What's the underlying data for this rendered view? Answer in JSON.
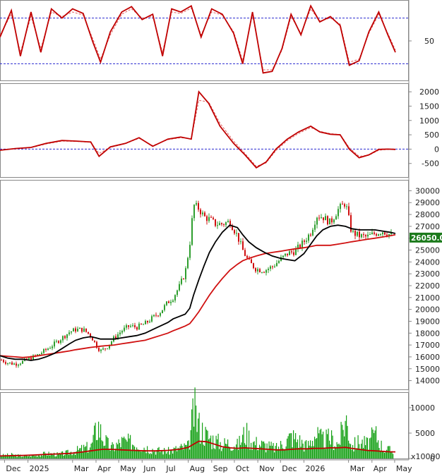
{
  "colors": {
    "indicator_line": "#c00000",
    "signal_line": "#e06060",
    "reference_line": "#2a2ad0",
    "ma_black": "#000000",
    "ma_red": "#d01010",
    "candle_up": "#2e9e2e",
    "candle_down": "#d01010",
    "volume_bar": "#14a014",
    "volume_ma": "#c00000",
    "price_badge": "#1b7a1b"
  },
  "chart_data": [
    {
      "type": "line",
      "panel": "oscillator",
      "y_ticks": [
        50
      ],
      "ylim": [
        0,
        100
      ],
      "reference_lines": [
        80,
        20
      ],
      "x": [
        "2024-11-25",
        "2024-12-10",
        "2024-12-22",
        "2025-01-05",
        "2025-01-18",
        "2025-02-01",
        "2025-02-15",
        "2025-03-01",
        "2025-03-15",
        "2025-03-28",
        "2025-04-07",
        "2025-04-20",
        "2025-05-05",
        "2025-05-18",
        "2025-06-01",
        "2025-06-15",
        "2025-06-28",
        "2025-07-10",
        "2025-07-22",
        "2025-08-05",
        "2025-08-18",
        "2025-09-01",
        "2025-09-15",
        "2025-09-30",
        "2025-10-12",
        "2025-10-25",
        "2025-11-08",
        "2025-11-20",
        "2025-12-03",
        "2025-12-15",
        "2025-12-28",
        "2026-01-10",
        "2026-01-22",
        "2026-02-05",
        "2026-02-18",
        "2026-03-02",
        "2026-03-15",
        "2026-03-28",
        "2026-04-10",
        "2026-04-22",
        "2026-05-02"
      ],
      "series": [
        {
          "values": [
            55,
            90,
            30,
            88,
            35,
            92,
            80,
            92,
            86,
            48,
            22,
            62,
            88,
            95,
            78,
            85,
            30,
            92,
            88,
            96,
            55,
            92,
            85,
            60,
            20,
            88,
            8,
            10,
            40,
            85,
            58,
            96,
            75,
            82,
            70,
            18,
            24,
            62,
            88,
            58,
            35
          ]
        },
        {
          "values": [
            58,
            85,
            35,
            82,
            40,
            88,
            82,
            88,
            84,
            52,
            26,
            58,
            85,
            92,
            80,
            82,
            35,
            88,
            86,
            93,
            58,
            88,
            84,
            62,
            24,
            84,
            12,
            12,
            38,
            82,
            60,
            92,
            76,
            80,
            72,
            22,
            26,
            60,
            85,
            60,
            38
          ]
        }
      ]
    },
    {
      "type": "line",
      "panel": "momentum",
      "y_ticks": [
        2000,
        1500,
        1000,
        500,
        0,
        -500
      ],
      "ylim": [
        -900,
        2200
      ],
      "reference_lines": [
        0
      ],
      "x": [
        "2024-11-25",
        "2024-12-15",
        "2025-01-05",
        "2025-01-25",
        "2025-02-15",
        "2025-03-05",
        "2025-03-25",
        "2025-04-05",
        "2025-04-20",
        "2025-05-10",
        "2025-05-28",
        "2025-06-15",
        "2025-07-05",
        "2025-07-22",
        "2025-08-05",
        "2025-08-15",
        "2025-08-28",
        "2025-09-12",
        "2025-09-30",
        "2025-10-15",
        "2025-10-30",
        "2025-11-12",
        "2025-11-25",
        "2025-12-10",
        "2025-12-25",
        "2026-01-10",
        "2026-01-22",
        "2026-02-05",
        "2026-02-18",
        "2026-03-02",
        "2026-03-15",
        "2026-03-28",
        "2026-04-10",
        "2026-04-22",
        "2026-05-02"
      ],
      "series": [
        {
          "values": [
            -40,
            20,
            60,
            200,
            300,
            280,
            250,
            -250,
            80,
            200,
            400,
            100,
            350,
            420,
            350,
            2000,
            1600,
            800,
            200,
            -200,
            -650,
            -450,
            0,
            350,
            600,
            800,
            600,
            520,
            500,
            0,
            -300,
            -200,
            -10,
            0,
            -10
          ]
        },
        {
          "values": [
            -30,
            10,
            50,
            180,
            280,
            270,
            240,
            -150,
            60,
            190,
            380,
            120,
            330,
            400,
            360,
            1700,
            1650,
            900,
            280,
            -150,
            -600,
            -480,
            -50,
            300,
            550,
            750,
            620,
            540,
            510,
            50,
            -250,
            -210,
            -40,
            -10,
            -20
          ]
        }
      ]
    },
    {
      "type": "line",
      "panel": "price",
      "y_ticks": [
        30000,
        29000,
        28000,
        27000,
        26000,
        25000,
        24000,
        23000,
        22000,
        21000,
        20000,
        19000,
        18000,
        17000,
        16000,
        15000,
        14000
      ],
      "ylim": [
        13500,
        30500
      ],
      "last_price": "26050.00",
      "x": [
        "2024-11-25",
        "2024-12-05",
        "2024-12-15",
        "2024-12-25",
        "2025-01-05",
        "2025-01-15",
        "2025-01-25",
        "2025-02-05",
        "2025-02-15",
        "2025-02-25",
        "2025-03-05",
        "2025-03-15",
        "2025-03-25",
        "2025-04-01",
        "2025-04-07",
        "2025-04-15",
        "2025-04-25",
        "2025-05-05",
        "2025-05-15",
        "2025-05-25",
        "2025-06-05",
        "2025-06-15",
        "2025-06-25",
        "2025-07-05",
        "2025-07-12",
        "2025-07-20",
        "2025-07-28",
        "2025-08-03",
        "2025-08-08",
        "2025-08-15",
        "2025-08-22",
        "2025-08-29",
        "2025-09-06",
        "2025-09-15",
        "2025-09-25",
        "2025-10-05",
        "2025-10-12",
        "2025-10-20",
        "2025-10-30",
        "2025-11-10",
        "2025-11-20",
        "2025-12-01",
        "2025-12-10",
        "2025-12-20",
        "2026-01-01",
        "2026-01-10",
        "2026-01-18",
        "2026-01-26",
        "2026-02-05",
        "2026-02-15",
        "2026-02-25",
        "2026-03-05",
        "2026-03-15",
        "2026-03-25",
        "2026-04-05",
        "2026-04-15",
        "2026-04-25",
        "2026-05-02"
      ],
      "series": [
        {
          "name": "price",
          "values": [
            15800,
            15500,
            15400,
            15600,
            15900,
            16200,
            16600,
            17100,
            17600,
            18100,
            18300,
            18300,
            17800,
            17000,
            16500,
            16800,
            17600,
            18200,
            18600,
            18500,
            18800,
            19300,
            19800,
            20600,
            21000,
            21900,
            23100,
            25500,
            28800,
            28500,
            27800,
            27600,
            27200,
            27200,
            27400,
            26200,
            25000,
            24000,
            23400,
            23300,
            23600,
            24200,
            24700,
            24900,
            25700,
            26500,
            27900,
            27800,
            27300,
            28400,
            29000,
            26500,
            26200,
            26100,
            26400,
            26600,
            26300,
            26050
          ]
        },
        {
          "name": "ma_fast",
          "values": [
            16100,
            15900,
            15800,
            15800,
            15700,
            15800,
            16000,
            16300,
            16700,
            17100,
            17400,
            17600,
            17700,
            17600,
            17500,
            17500,
            17500,
            17600,
            17700,
            17800,
            18000,
            18300,
            18600,
            18900,
            19200,
            19400,
            19600,
            20100,
            21200,
            22500,
            23700,
            24800,
            25700,
            26500,
            27100,
            26900,
            26300,
            25700,
            25200,
            24800,
            24500,
            24300,
            24200,
            24100,
            24700,
            25500,
            26200,
            26700,
            27000,
            27100,
            27000,
            26800,
            26700,
            26700,
            26700,
            26600,
            26500,
            26400
          ]
        },
        {
          "name": "ma_slow",
          "values": [
            16100,
            16050,
            16000,
            15950,
            16000,
            16100,
            16200,
            16300,
            16400,
            16500,
            16600,
            16700,
            16800,
            16850,
            16900,
            16950,
            17000,
            17100,
            17200,
            17300,
            17400,
            17600,
            17800,
            18000,
            18200,
            18400,
            18600,
            18800,
            19200,
            19800,
            20500,
            21200,
            21900,
            22600,
            23300,
            23800,
            24100,
            24300,
            24500,
            24700,
            24800,
            24900,
            25000,
            25100,
            25200,
            25300,
            25400,
            25400,
            25400,
            25500,
            25600,
            25700,
            25800,
            25900,
            26000,
            26100,
            26200,
            26300
          ]
        }
      ]
    },
    {
      "type": "bar",
      "panel": "volume",
      "y_ticks": [
        10000,
        5000,
        0
      ],
      "ylim": [
        0,
        12500
      ],
      "unit_label": "x10000",
      "x_tick_labels": [
        "Dec",
        "2025",
        "Mar",
        "Apr",
        "May",
        "Jun",
        "Jul",
        "Aug",
        "Sep",
        "Oct",
        "Nov",
        "Dec",
        "2026",
        "Mar",
        "Apr",
        "May"
      ],
      "x": [
        "2024-11-25",
        "2024-12-10",
        "2024-12-25",
        "2025-01-10",
        "2025-01-25",
        "2025-02-10",
        "2025-02-25",
        "2025-03-10",
        "2025-03-25",
        "2025-04-03",
        "2025-04-10",
        "2025-04-20",
        "2025-05-05",
        "2025-05-20",
        "2025-06-05",
        "2025-06-20",
        "2025-07-05",
        "2025-07-20",
        "2025-08-01",
        "2025-08-08",
        "2025-08-15",
        "2025-08-25",
        "2025-09-05",
        "2025-09-15",
        "2025-09-25",
        "2025-10-05",
        "2025-10-15",
        "2025-10-25",
        "2025-11-05",
        "2025-11-15",
        "2025-11-25",
        "2025-12-05",
        "2025-12-15",
        "2025-12-25",
        "2026-01-05",
        "2026-01-15",
        "2026-01-25",
        "2026-02-05",
        "2026-02-15",
        "2026-02-25",
        "2026-03-05",
        "2026-03-15",
        "2026-03-25",
        "2026-04-05",
        "2026-04-15",
        "2026-04-25",
        "2026-05-02"
      ],
      "series": [
        {
          "name": "volume",
          "values": [
            700,
            900,
            600,
            800,
            1200,
            1000,
            1500,
            2200,
            3000,
            8500,
            5000,
            2500,
            4200,
            3800,
            2800,
            2000,
            1800,
            2500,
            3000,
            12000,
            8000,
            5500,
            4500,
            3500,
            4000,
            3200,
            6500,
            4000,
            3500,
            3000,
            2500,
            3800,
            5500,
            4500,
            3000,
            6000,
            4500,
            5000,
            3500,
            10000,
            3000,
            4200,
            3500,
            6000,
            2500,
            2000,
            1500
          ]
        },
        {
          "name": "volume_ma",
          "values": [
            500,
            550,
            600,
            700,
            800,
            900,
            1000,
            1200,
            1500,
            1700,
            1800,
            1800,
            1700,
            1600,
            1500,
            1500,
            1600,
            1800,
            2200,
            2800,
            3400,
            3300,
            2800,
            2300,
            2100,
            2000,
            2100,
            2000,
            1900,
            1800,
            1700,
            1700,
            1800,
            1900,
            1900,
            2000,
            2000,
            2100,
            2100,
            2200,
            2000,
            1800,
            1600,
            1500,
            1400,
            1300,
            1300
          ]
        }
      ]
    }
  ]
}
